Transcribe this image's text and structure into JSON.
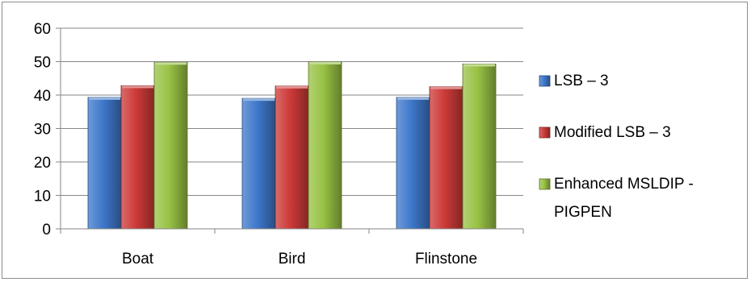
{
  "chart_data": {
    "type": "bar",
    "title": "",
    "xlabel": "",
    "ylabel": "",
    "categories": [
      "Boat",
      "Bird",
      "Flinstone"
    ],
    "series": [
      {
        "name": "LSB – 3",
        "values": [
          39.3,
          39.0,
          39.3
        ],
        "color": "#3e78cb"
      },
      {
        "name": "Modified LSB – 3",
        "values": [
          42.8,
          42.7,
          42.5
        ],
        "color": "#cc3a38"
      },
      {
        "name": "Enhanced MSLDIP - PIGPEN",
        "legend_lines": [
          "Enhanced MSLDIP -",
          "PIGPEN"
        ],
        "values": [
          49.8,
          49.9,
          49.3
        ],
        "color": "#98c244"
      }
    ],
    "ylim": [
      0,
      60
    ],
    "yticks": [
      0,
      10,
      20,
      30,
      40,
      50,
      60
    ],
    "grid": true,
    "legend_position": "right"
  }
}
